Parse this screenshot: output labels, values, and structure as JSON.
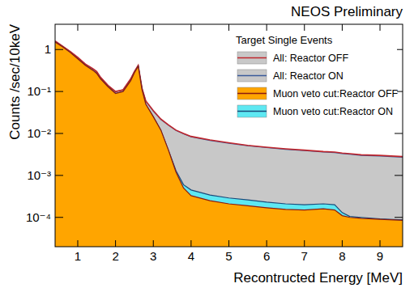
{
  "chart_data": {
    "type": "area",
    "title": "NEOS Preliminary",
    "x_label": "Recontructed Energy [MeV]",
    "y_label": "Counts /sec/10keV",
    "legend_title": "Target Single Events",
    "legend": "top-right",
    "log": "y",
    "xlim": [
      0.4,
      9.6
    ],
    "ylim": [
      2e-05,
      4
    ],
    "xticks": [
      1,
      2,
      3,
      4,
      5,
      6,
      7,
      8,
      9
    ],
    "yticks": [
      {
        "value": 0.0001,
        "label": "10⁻⁴"
      },
      {
        "value": 0.001,
        "label": "10⁻³"
      },
      {
        "value": 0.01,
        "label": "10⁻²"
      },
      {
        "value": 0.1,
        "label": "10⁻¹"
      },
      1
    ],
    "x": [
      0.4,
      0.6,
      0.8,
      1.0,
      1.2,
      1.4,
      1.5,
      1.6,
      1.8,
      2.0,
      2.2,
      2.4,
      2.5,
      2.6,
      2.7,
      2.8,
      3.0,
      3.2,
      3.4,
      3.6,
      3.8,
      4.0,
      4.5,
      5.0,
      5.5,
      6.0,
      6.5,
      7.0,
      7.5,
      7.8,
      8.0,
      8.2,
      8.5,
      9.0,
      9.6
    ],
    "series": [
      {
        "name": "All: Reactor OFF",
        "type": "line",
        "color": "#c0262c",
        "values": [
          1.6,
          1.2,
          0.9,
          0.65,
          0.45,
          0.35,
          0.3,
          0.22,
          0.14,
          0.1,
          0.11,
          0.2,
          0.3,
          0.42,
          0.12,
          0.06,
          0.035,
          0.022,
          0.016,
          0.012,
          0.01,
          0.0085,
          0.007,
          0.006,
          0.0052,
          0.0047,
          0.0043,
          0.004,
          0.0037,
          0.0036,
          0.0034,
          0.0033,
          0.0031,
          0.003,
          0.0028
        ]
      },
      {
        "name": "All: Reactor ON",
        "type": "area",
        "color": "#c8c8c8",
        "values": [
          1.58,
          1.19,
          0.89,
          0.64,
          0.445,
          0.345,
          0.297,
          0.218,
          0.139,
          0.099,
          0.109,
          0.198,
          0.298,
          0.415,
          0.118,
          0.059,
          0.034,
          0.0215,
          0.0157,
          0.0118,
          0.0098,
          0.0083,
          0.0068,
          0.0058,
          0.0051,
          0.0046,
          0.0042,
          0.0039,
          0.0036,
          0.0035,
          0.0033,
          0.0032,
          0.003,
          0.0029,
          0.0027
        ]
      },
      {
        "name": "Muon veto cut:Reactor OFF",
        "type": "area",
        "color": "#ffa500",
        "values": [
          1.5,
          1.15,
          0.85,
          0.6,
          0.42,
          0.32,
          0.27,
          0.2,
          0.13,
          0.09,
          0.1,
          0.18,
          0.28,
          0.4,
          0.11,
          0.05,
          0.025,
          0.012,
          0.004,
          0.0012,
          0.0005,
          0.00033,
          0.00025,
          0.00021,
          0.00019,
          0.00017,
          0.000155,
          0.00015,
          0.00016,
          0.00015,
          0.00011,
          0.0001,
          9.5e-05,
          9e-05,
          8.5e-05
        ]
      },
      {
        "name": "Muon veto cut:Reactor ON",
        "type": "area",
        "color": "#5ee8f2",
        "values": [
          1.5,
          1.15,
          0.85,
          0.6,
          0.42,
          0.32,
          0.27,
          0.2,
          0.13,
          0.09,
          0.1,
          0.18,
          0.28,
          0.4,
          0.11,
          0.05,
          0.025,
          0.012,
          0.004,
          0.0013,
          0.0006,
          0.00045,
          0.00034,
          0.00029,
          0.00026,
          0.00023,
          0.00021,
          0.0002,
          0.00021,
          0.0002,
          0.00013,
          0.000105,
          0.0001,
          9.2e-05,
          8.7e-05
        ]
      }
    ]
  }
}
